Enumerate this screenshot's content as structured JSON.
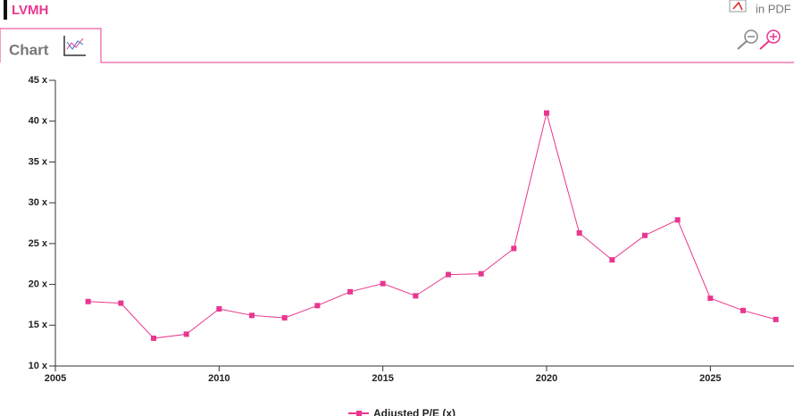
{
  "header": {
    "title": "LVMH",
    "pdf": "in PDF",
    "tab": "Chart"
  },
  "chart_data": {
    "type": "line",
    "x": [
      2006,
      2007,
      2008,
      2009,
      2010,
      2011,
      2012,
      2013,
      2014,
      2015,
      2016,
      2017,
      2018,
      2019,
      2020,
      2021,
      2022,
      2023,
      2024,
      2025,
      2026,
      2027
    ],
    "series": [
      {
        "name": "Adjusted P/E (x)",
        "color": "#e8378f",
        "values": [
          17.9,
          17.7,
          13.4,
          13.9,
          17.0,
          16.2,
          15.9,
          17.4,
          19.1,
          20.1,
          18.6,
          21.2,
          21.3,
          24.4,
          41.0,
          26.3,
          23.0,
          26.0,
          27.9,
          18.3,
          16.8,
          15.7
        ]
      }
    ],
    "xlim": [
      2005,
      2027.5
    ],
    "xticks": [
      2005,
      2010,
      2015,
      2020,
      2025
    ],
    "ylim": [
      10,
      45
    ],
    "yticks": [
      {
        "value": 10,
        "label": "10 x"
      },
      {
        "value": 15,
        "label": "15 x"
      },
      {
        "value": 20,
        "label": "20 x"
      },
      {
        "value": 25,
        "label": "25 x"
      },
      {
        "value": 30,
        "label": "30 x"
      },
      {
        "value": 35,
        "label": "35 x"
      },
      {
        "value": 40,
        "label": "40 x"
      },
      {
        "value": 45,
        "label": "45 x"
      }
    ]
  }
}
